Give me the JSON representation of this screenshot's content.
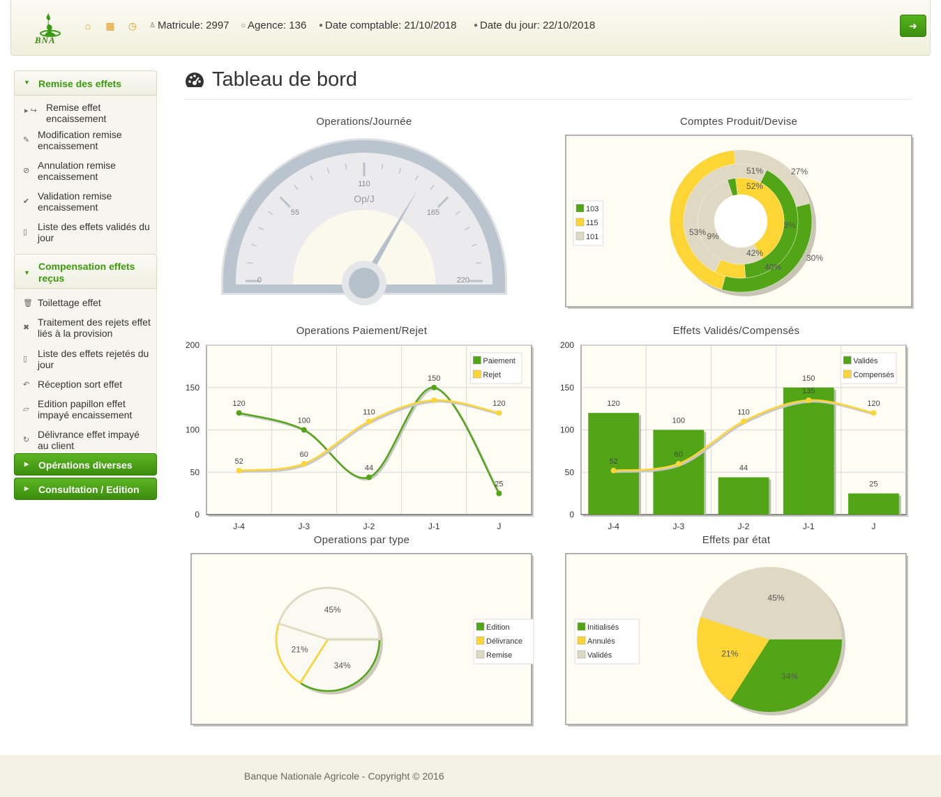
{
  "header": {
    "logo_text": "BNA",
    "matricule": "Matricule: 2997",
    "agence": "Agence: 136",
    "date_comptable": "Date comptable: 21/10/2018",
    "date_jour": "Date du jour: 22/10/2018",
    "icons": [
      "home-icon",
      "calendar-icon",
      "clock-icon",
      "user-icon",
      "house-small-icon",
      "clock-small-icon",
      "logout-icon"
    ]
  },
  "sidebar": {
    "section1": {
      "title": "Remise des effets",
      "items": [
        {
          "label": "Remise effet encaissement",
          "icon": "share-icon"
        },
        {
          "label": "Modification remise encaissement",
          "icon": "pencil-icon"
        },
        {
          "label": "Annulation remise encaissement",
          "icon": "ban-icon"
        },
        {
          "label": "Validation remise encaissement",
          "icon": "check-icon"
        },
        {
          "label": "Liste des effets validés du jour",
          "icon": "file-icon"
        }
      ]
    },
    "section2": {
      "title": "Compensation effets reçus",
      "items": [
        {
          "label": "Toilettage effet",
          "icon": "trash-icon"
        },
        {
          "label": "Traitement des rejets effet liés à la provision",
          "icon": "times-icon"
        },
        {
          "label": "Liste des effets rejetés du jour",
          "icon": "file-icon"
        },
        {
          "label": "Réception sort effet",
          "icon": "reply-icon"
        },
        {
          "label": "Edition papillon effet impayé encaissement",
          "icon": "note-icon"
        },
        {
          "label": "Délivrance effet impayé au client",
          "icon": "refresh-icon"
        }
      ]
    },
    "section3": {
      "title": "Opérations diverses"
    },
    "section4": {
      "title": "Consultation / Edition"
    }
  },
  "main": {
    "page_title": "Tableau de bord",
    "title_icon": "dashboard-icon"
  },
  "colors": {
    "green": "#52a516",
    "yellow": "#fdd636",
    "beige": "#dfd9c3",
    "plot_bg": "#fffdf3"
  },
  "chart_data": [
    {
      "id": "gauge",
      "type": "gauge",
      "title": "Operations/Journée",
      "label": "Op/J",
      "min": 0,
      "max": 220,
      "tick_labels": [
        "0",
        "55",
        "110",
        "165",
        "220"
      ],
      "value": 147
    },
    {
      "id": "donut",
      "type": "pie",
      "title": "Comptes Produit/Devise",
      "legend": [
        "103",
        "115",
        "101"
      ],
      "rings": [
        {
          "values": [
            40,
            53,
            27
          ]
        },
        {
          "values": [
            42,
            9,
            51
          ]
        },
        {
          "values": [
            3,
            43,
            52
          ]
        }
      ],
      "labels_outer": [
        "40%",
        "53%",
        "27%"
      ],
      "labels_middle": [
        "42%",
        "9%",
        "51%"
      ],
      "labels_inner": [
        "3%",
        "52%"
      ],
      "label_right": "30%"
    },
    {
      "id": "line",
      "type": "line",
      "title": "Operations Paiement/Rejet",
      "categories": [
        "J-4",
        "J-3",
        "J-2",
        "J-1",
        "J"
      ],
      "ylim": [
        0,
        200
      ],
      "yticks": [
        "0",
        "50",
        "100",
        "150",
        "200"
      ],
      "legend_placement": "top-right",
      "series": [
        {
          "name": "Paiement",
          "values": [
            120,
            100,
            44,
            150,
            25
          ],
          "color": "#52a516"
        },
        {
          "name": "Rejet",
          "values": [
            52,
            60,
            110,
            135,
            120
          ],
          "color": "#fdd636"
        }
      ],
      "point_labels": {
        "Paiement": [
          "120",
          "100",
          "44",
          "150",
          "25"
        ],
        "Rejet": [
          "52",
          "60",
          "110",
          "",
          "120"
        ]
      }
    },
    {
      "id": "combo",
      "type": "bar",
      "title": "Effets Validés/Compensés",
      "categories": [
        "J-4",
        "J-3",
        "J-2",
        "J-1",
        "J"
      ],
      "ylim": [
        0,
        200
      ],
      "yticks": [
        "0",
        "50",
        "100",
        "150",
        "200"
      ],
      "legend_placement": "top-right",
      "series": [
        {
          "name": "Validés",
          "kind": "bar",
          "values": [
            120,
            100,
            44,
            150,
            25
          ],
          "color": "#52a516"
        },
        {
          "name": "Compensés",
          "kind": "line",
          "values": [
            52,
            60,
            110,
            135,
            120
          ],
          "color": "#fdd636"
        }
      ],
      "point_labels": {
        "Validés": [
          "120",
          "100",
          "44",
          "150",
          "25"
        ],
        "Compensés": [
          "52",
          "60",
          "110",
          "135",
          "120"
        ]
      }
    },
    {
      "id": "pie1",
      "type": "pie",
      "title": "Operations par type",
      "legend_placement": "right",
      "slices": [
        {
          "name": "Edition",
          "value": 34,
          "label": "34%",
          "color": "#52a516"
        },
        {
          "name": "Délivrance",
          "value": 21,
          "label": "21%",
          "color": "#fdd636"
        },
        {
          "name": "Remise",
          "value": 45,
          "label": "45%",
          "color": "#dfd9c3"
        }
      ],
      "style": "outline"
    },
    {
      "id": "pie2",
      "type": "pie",
      "title": "Effets par état",
      "legend_placement": "left",
      "slices": [
        {
          "name": "Initialisés",
          "value": 34,
          "label": "34%",
          "color": "#52a516"
        },
        {
          "name": "Annulés",
          "value": 21,
          "label": "21%",
          "color": "#fdd636"
        },
        {
          "name": "Validés",
          "value": 45,
          "label": "45%",
          "color": "#dfd9c3"
        }
      ],
      "style": "filled"
    }
  ],
  "footer": {
    "copyright": "Banque Nationale Agricole - Copyright © 2016"
  }
}
